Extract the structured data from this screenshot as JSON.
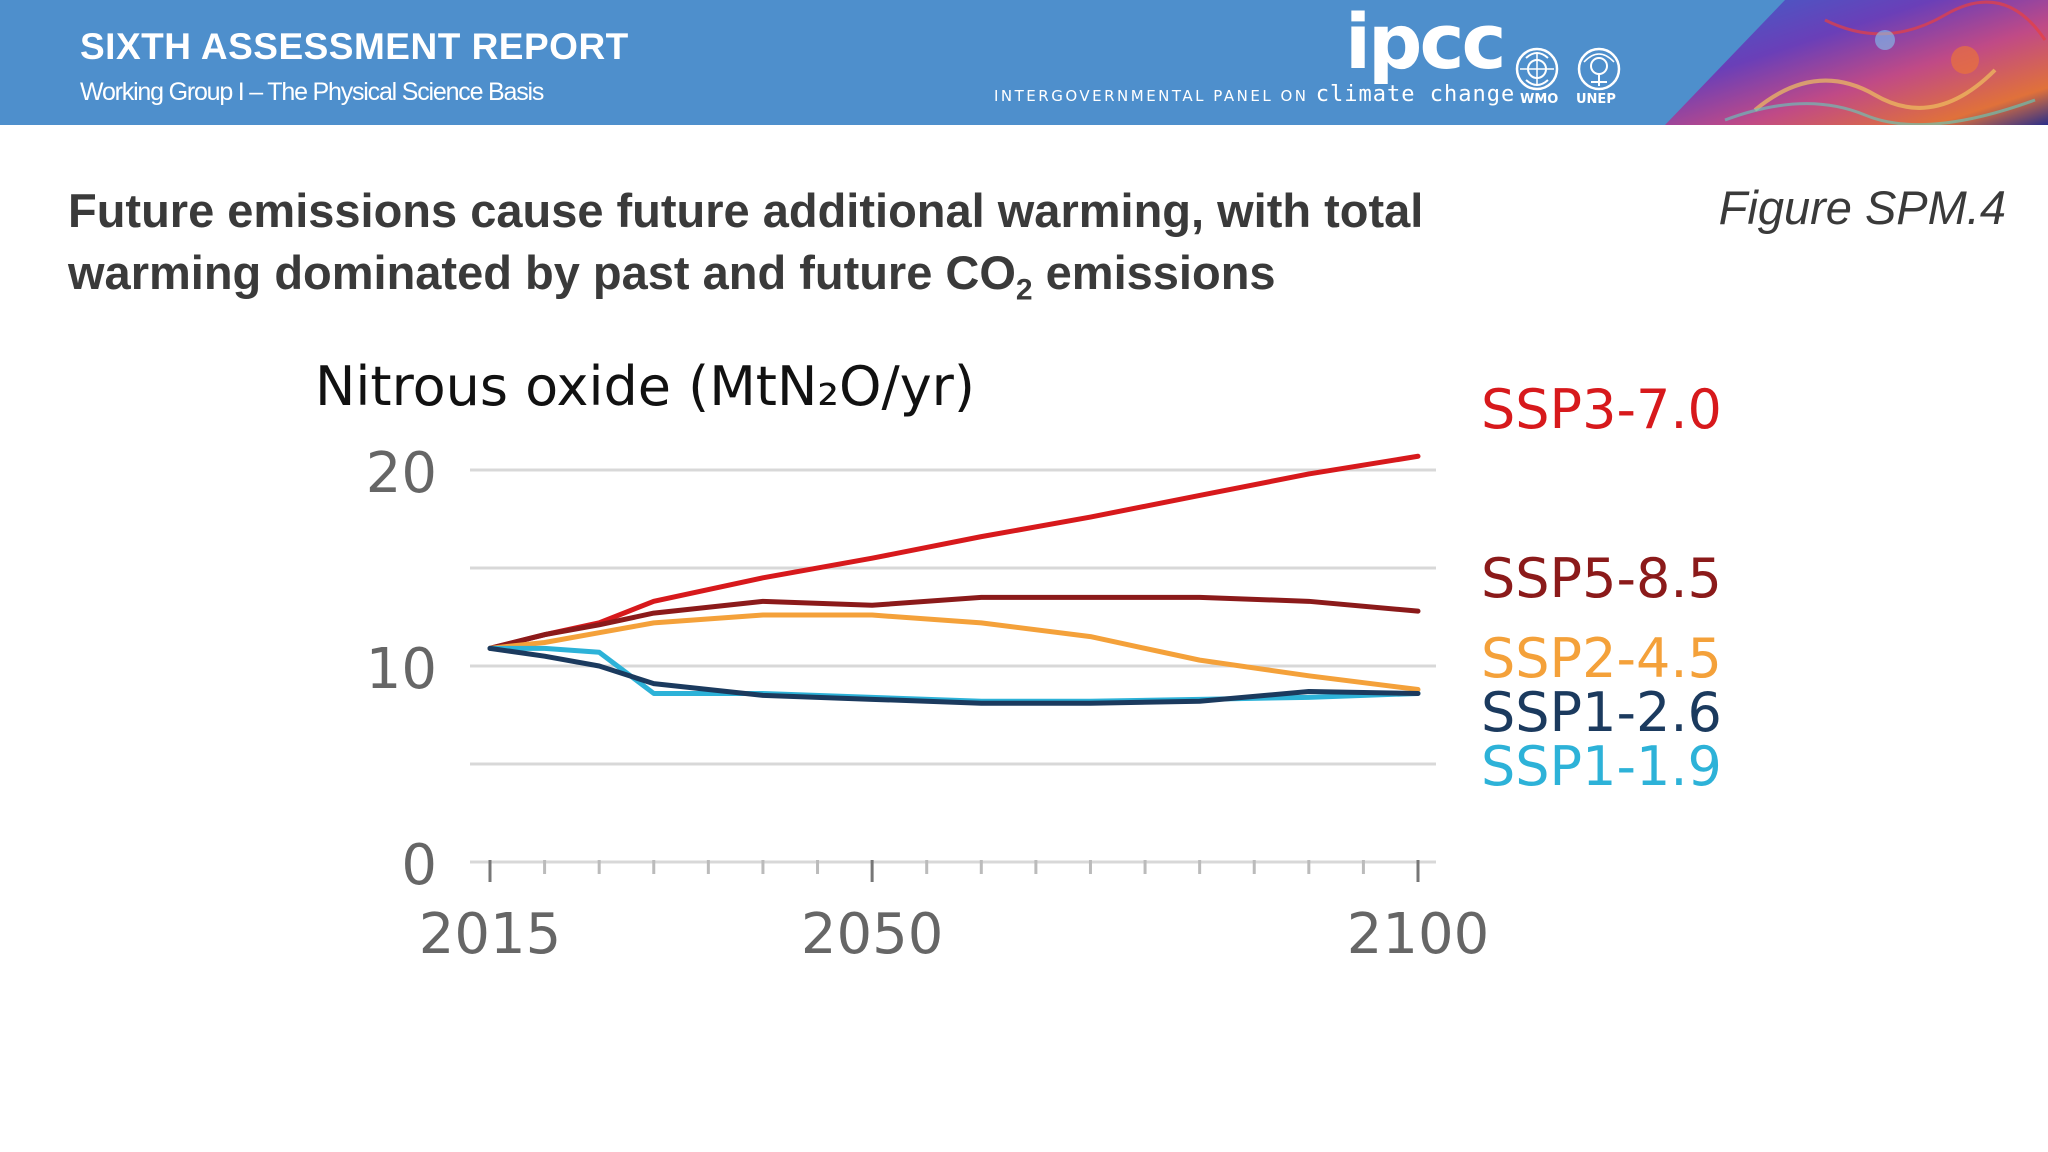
{
  "header": {
    "report_title": "SIXTH ASSESSMENT REPORT",
    "report_subtitle": "Working Group I – The Physical Science Basis",
    "org_logo_text": "ipcc",
    "org_tagline_prefix": "INTERGOVERNMENTAL PANEL ON",
    "org_tagline_suffix": "climate change",
    "partner_1": "WMO",
    "partner_2": "UNEP",
    "colors": {
      "band": "#4e8fcc",
      "text": "#ffffff"
    },
    "icons": [
      "wmo-emblem-icon",
      "unep-emblem-icon",
      "header-artwork"
    ]
  },
  "slide": {
    "title_line1": "Future emissions cause future additional warming, with total",
    "title_line2_prefix": "warming dominated by past and future CO",
    "title_line2_subscript": "2",
    "title_line2_suffix": " emissions",
    "figure_label": "Figure SPM.4"
  },
  "chart_data": {
    "type": "line",
    "title": "Nitrous oxide (MtN₂O/yr)",
    "xlabel": "",
    "ylabel": "",
    "xlim": [
      2015,
      2100
    ],
    "ylim": [
      0,
      20
    ],
    "x_ticks": [
      2015,
      2050,
      2100
    ],
    "y_ticks": [
      0,
      10,
      20
    ],
    "grid": true,
    "legend": "right, labels at line ends",
    "x": [
      2015,
      2020,
      2025,
      2030,
      2040,
      2050,
      2060,
      2070,
      2080,
      2090,
      2100
    ],
    "series": [
      {
        "name": "SSP3-7.0",
        "color": "#d7191c",
        "values": [
          10.9,
          11.6,
          12.2,
          13.3,
          14.5,
          15.5,
          16.6,
          17.6,
          18.7,
          19.8,
          20.7
        ]
      },
      {
        "name": "SSP5-8.5",
        "color": "#8b1a1a",
        "values": [
          10.9,
          11.6,
          12.1,
          12.7,
          13.3,
          13.1,
          13.5,
          13.5,
          13.5,
          13.3,
          12.8
        ]
      },
      {
        "name": "SSP2-4.5",
        "color": "#f4a13a",
        "values": [
          10.9,
          11.2,
          11.7,
          12.2,
          12.6,
          12.6,
          12.2,
          11.5,
          10.3,
          9.5,
          8.8
        ]
      },
      {
        "name": "SSP1-2.6",
        "color": "#1b3a5e",
        "values": [
          10.9,
          10.5,
          10.0,
          9.1,
          8.5,
          8.3,
          8.1,
          8.1,
          8.2,
          8.7,
          8.6
        ]
      },
      {
        "name": "SSP1-1.9",
        "color": "#2db2d8",
        "values": [
          10.9,
          10.9,
          10.7,
          8.6,
          8.6,
          8.4,
          8.2,
          8.2,
          8.3,
          8.4,
          8.6
        ]
      }
    ]
  }
}
